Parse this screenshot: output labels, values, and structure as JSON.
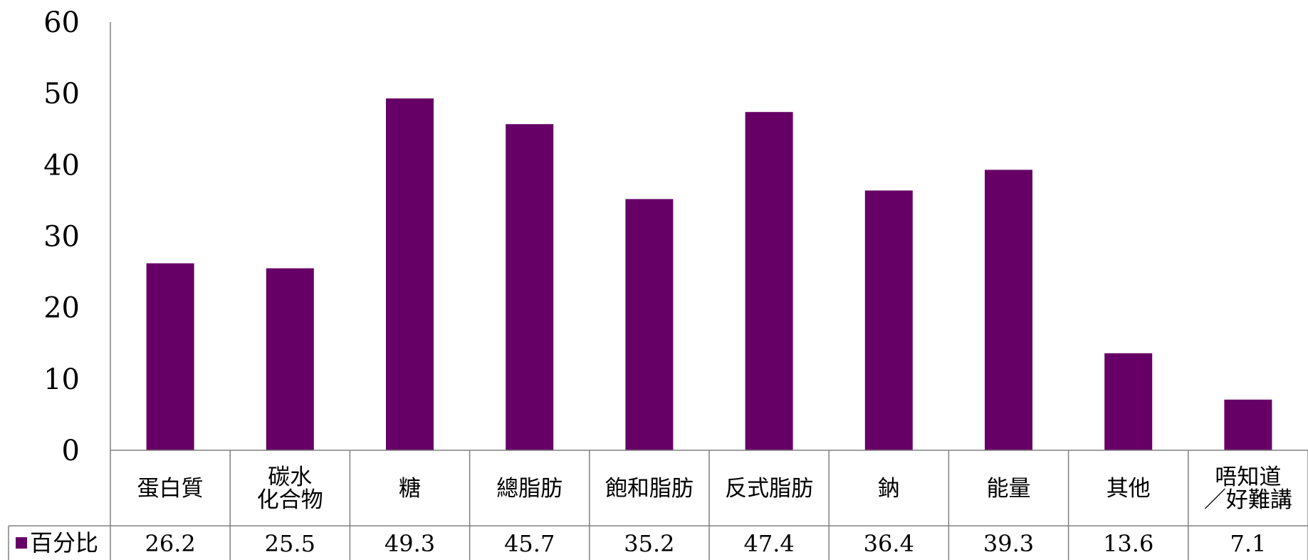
{
  "chart_data": {
    "type": "bar",
    "categories": [
      [
        "蛋白質"
      ],
      [
        "碳水",
        "化合物"
      ],
      [
        "糖"
      ],
      [
        "總脂肪"
      ],
      [
        "飽和脂肪"
      ],
      [
        "反式脂肪"
      ],
      [
        "鈉"
      ],
      [
        "能量"
      ],
      [
        "其他"
      ],
      [
        "唔知道",
        "／好難講"
      ]
    ],
    "series": [
      {
        "name": "百分比",
        "values": [
          26.2,
          25.5,
          49.3,
          45.7,
          35.2,
          47.4,
          36.4,
          39.3,
          13.6,
          7.1
        ]
      }
    ],
    "value_labels": [
      "26.2",
      "25.5",
      "49.3",
      "45.7",
      "35.2",
      "47.4",
      "36.4",
      "39.3",
      "13.6",
      "7.1"
    ],
    "yticks": [
      0,
      10,
      20,
      30,
      40,
      50,
      60
    ],
    "ylim": [
      0,
      60
    ],
    "title": "",
    "xlabel": "",
    "ylabel": "",
    "grid": false,
    "legend": "data-table-left",
    "colors": {
      "bar": "#660066",
      "axis": "#808080",
      "text": "#000000"
    }
  }
}
